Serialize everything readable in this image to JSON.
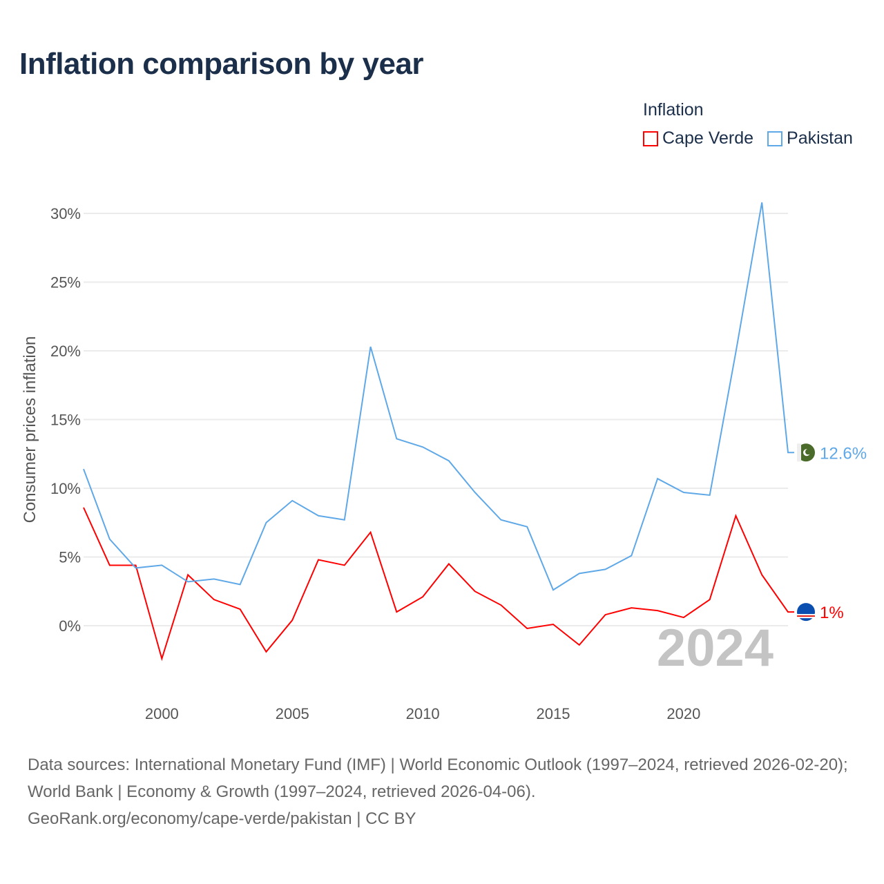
{
  "title": "Inflation comparison by year",
  "legend": {
    "title": "Inflation",
    "items": [
      {
        "label": "Cape Verde",
        "color": "#ff0000"
      },
      {
        "label": "Pakistan",
        "color": "#5fa8e8"
      }
    ]
  },
  "year_watermark": "2024",
  "source": {
    "line1": "Data sources: International Monetary Fund (IMF) | World Economic Outlook (1997–2024, retrieved 2026-02-20); World Bank | Economy & Growth (1997–2024, retrieved 2026-04-06).",
    "line2": "GeoRank.org/economy/cape-verde/pakistan | CC BY"
  },
  "chart_data": {
    "type": "line",
    "title": "Inflation comparison by year",
    "xlabel": "",
    "ylabel": "Consumer prices inflation",
    "xlim": [
      1997,
      2024
    ],
    "ylim": [
      -5,
      32
    ],
    "x_ticks": [
      2000,
      2005,
      2010,
      2015,
      2020
    ],
    "y_ticks": [
      0,
      5,
      10,
      15,
      20,
      25,
      30
    ],
    "y_tick_labels": [
      "0%",
      "5%",
      "10%",
      "15%",
      "20%",
      "25%",
      "30%"
    ],
    "grid": true,
    "legend_position": "top-right",
    "x": [
      1997,
      1998,
      1999,
      2000,
      2001,
      2002,
      2003,
      2004,
      2005,
      2006,
      2007,
      2008,
      2009,
      2010,
      2011,
      2012,
      2013,
      2014,
      2015,
      2016,
      2017,
      2018,
      2019,
      2020,
      2021,
      2022,
      2023,
      2024
    ],
    "series": [
      {
        "name": "Cape Verde",
        "color": "#ff0000",
        "end_label": "1%",
        "flag": "cape-verde-flag",
        "values": [
          8.6,
          4.4,
          4.4,
          -2.4,
          3.7,
          1.9,
          1.2,
          -1.9,
          0.4,
          4.8,
          4.4,
          6.8,
          1.0,
          2.1,
          4.5,
          2.5,
          1.5,
          -0.2,
          0.1,
          -1.4,
          0.8,
          1.3,
          1.1,
          0.6,
          1.9,
          8.0,
          3.7,
          1.0
        ]
      },
      {
        "name": "Pakistan",
        "color": "#5fa8e8",
        "end_label": "12.6%",
        "flag": "pakistan-flag",
        "values": [
          11.4,
          6.3,
          4.2,
          4.4,
          3.2,
          3.4,
          3.0,
          7.5,
          9.1,
          8.0,
          7.7,
          20.3,
          13.6,
          13.0,
          12.0,
          9.7,
          7.7,
          7.2,
          2.6,
          3.8,
          4.1,
          5.1,
          10.7,
          9.7,
          9.5,
          19.9,
          30.8,
          12.6
        ]
      }
    ]
  }
}
